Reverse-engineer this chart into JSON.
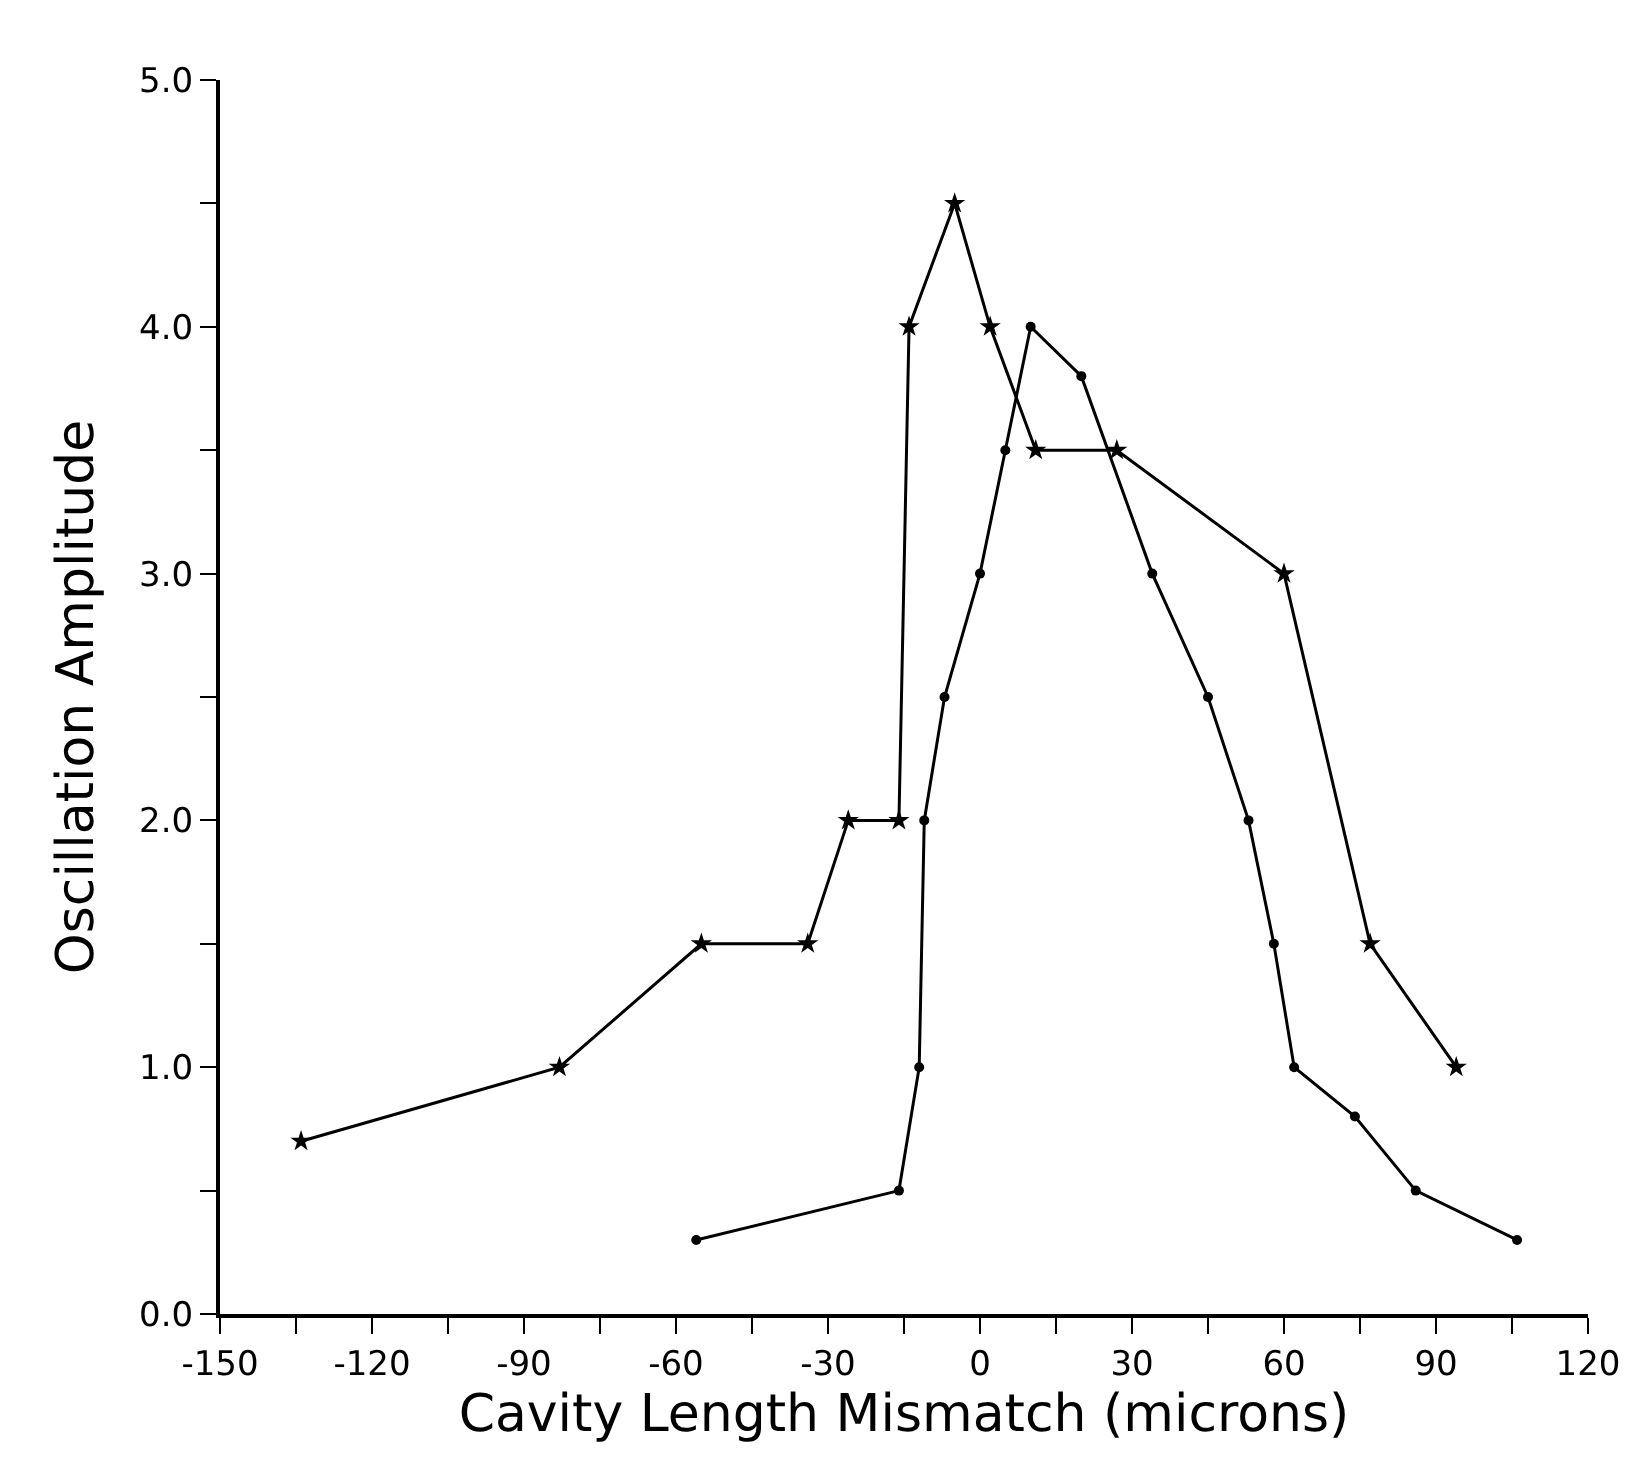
{
  "chart_data": {
    "type": "line",
    "xlabel": "Cavity Length Mismatch (microns)",
    "ylabel": "Oscillation Amplitude",
    "series": [
      {
        "color": "#000000",
        "marker": "star",
        "x": [
          -134,
          -83,
          -55,
          -34,
          -26,
          -16,
          -14,
          -5,
          2,
          11,
          27,
          60,
          77,
          94
        ],
        "values": [
          0.7,
          1.0,
          1.5,
          1.5,
          2.0,
          2.0,
          4.0,
          4.5,
          4.0,
          3.5,
          3.5,
          3.0,
          1.5,
          1.0
        ]
      },
      {
        "color": "#000000",
        "marker": "circle",
        "x": [
          -56,
          -16,
          -12,
          -11,
          -7,
          0,
          5,
          10,
          20,
          34,
          45,
          53,
          58,
          62,
          74,
          86,
          106
        ],
        "values": [
          0.3,
          0.5,
          1.0,
          2.0,
          2.5,
          3.0,
          3.5,
          4.0,
          3.8,
          3.0,
          2.5,
          2.0,
          1.5,
          1.0,
          0.8,
          0.5,
          0.3
        ]
      }
    ],
    "xlim": [
      -150,
      120
    ],
    "xticks": [
      -150,
      {
        "value": -135,
        "label": null
      },
      -120,
      {
        "value": -105,
        "label": null
      },
      -90,
      {
        "value": -75,
        "label": null
      },
      -60,
      {
        "value": -45,
        "label": null
      },
      -30,
      {
        "value": -15,
        "label": null
      },
      0,
      {
        "value": 15,
        "label": null
      },
      30,
      {
        "value": 45,
        "label": null
      },
      60,
      {
        "value": 75,
        "label": null
      },
      90,
      {
        "value": 105,
        "label": null
      },
      120
    ],
    "ylim": [
      0,
      5
    ],
    "yticks": [
      {
        "value": 0,
        "label": "0.0"
      },
      {
        "value": 0.5,
        "label": null
      },
      {
        "value": 1,
        "label": "1.0"
      },
      {
        "value": 1.5,
        "label": null
      },
      {
        "value": 2,
        "label": "2.0"
      },
      {
        "value": 2.5,
        "label": null
      },
      {
        "value": 3,
        "label": "3.0"
      },
      {
        "value": 3.5,
        "label": null
      },
      {
        "value": 4,
        "label": "4.0"
      },
      {
        "value": 4.5,
        "label": null
      },
      {
        "value": 5,
        "label": "5.0"
      }
    ],
    "line_style": "solid"
  }
}
